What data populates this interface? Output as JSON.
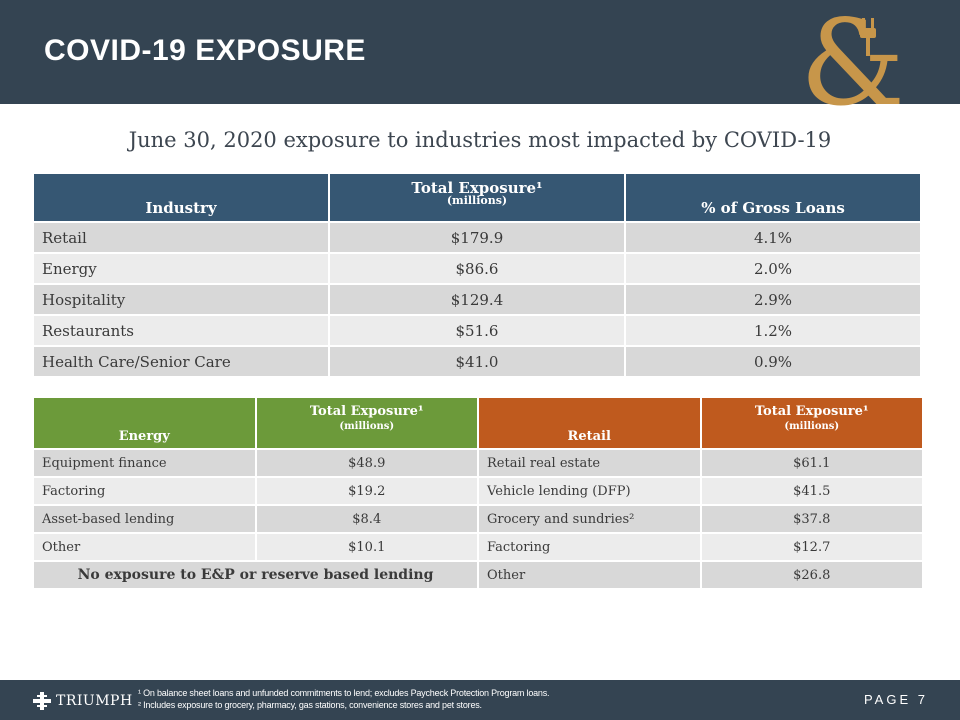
{
  "header": {
    "title": "COVID-19 EXPOSURE"
  },
  "subtitle": "June 30, 2020 exposure to industries most impacted by COVID-19",
  "main_table": {
    "headers": [
      {
        "label": "Industry"
      },
      {
        "label": "Total Exposure¹",
        "sub": "(millions)"
      },
      {
        "label": "% of Gross Loans"
      }
    ],
    "rows": [
      [
        "Retail",
        "$179.9",
        "4.1%"
      ],
      [
        "Energy",
        "$86.6",
        "2.0%"
      ],
      [
        "Hospitality",
        "$129.4",
        "2.9%"
      ],
      [
        "Restaurants",
        "$51.6",
        "1.2%"
      ],
      [
        "Health Care/Senior Care",
        "$41.0",
        "0.9%"
      ]
    ]
  },
  "detail_table": {
    "energy_header": "Energy",
    "energy_exposure_header": "Total Exposure¹",
    "energy_exposure_sub": "(millions)",
    "retail_header": "Retail",
    "retail_exposure_header": "Total Exposure¹",
    "retail_exposure_sub": "(millions)",
    "energy_rows": [
      [
        "Equipment finance",
        "$48.9"
      ],
      [
        "Factoring",
        "$19.2"
      ],
      [
        "Asset-based lending",
        "$8.4"
      ],
      [
        "Other",
        "$10.1"
      ]
    ],
    "energy_note": "No exposure to E&P or reserve based lending",
    "retail_rows": [
      [
        "Retail real estate",
        "$61.1"
      ],
      [
        "Vehicle lending (DFP)",
        "$41.5"
      ],
      [
        "Grocery and sundries²",
        "$37.8"
      ],
      [
        "Factoring",
        "$12.7"
      ],
      [
        "Other",
        "$26.8"
      ]
    ]
  },
  "footer": {
    "brand": "TRIUMPH",
    "footnote_1": "¹ On balance sheet loans and unfunded commitments to lend; excludes Paycheck Protection Program loans.",
    "footnote_2": "² Includes exposure to grocery, pharmacy, gas stations, convenience stores and pet stores.",
    "page_label": "PAGE",
    "page_number": "7"
  },
  "colors": {
    "header_bg": "#344452",
    "table_header_blue": "#365773",
    "energy_green": "#6c9a3a",
    "retail_orange": "#bf5a1e",
    "logo_gold": "#c7964a"
  },
  "icons": [
    "ampersand-plug-logo",
    "triumph-cross-logo"
  ]
}
